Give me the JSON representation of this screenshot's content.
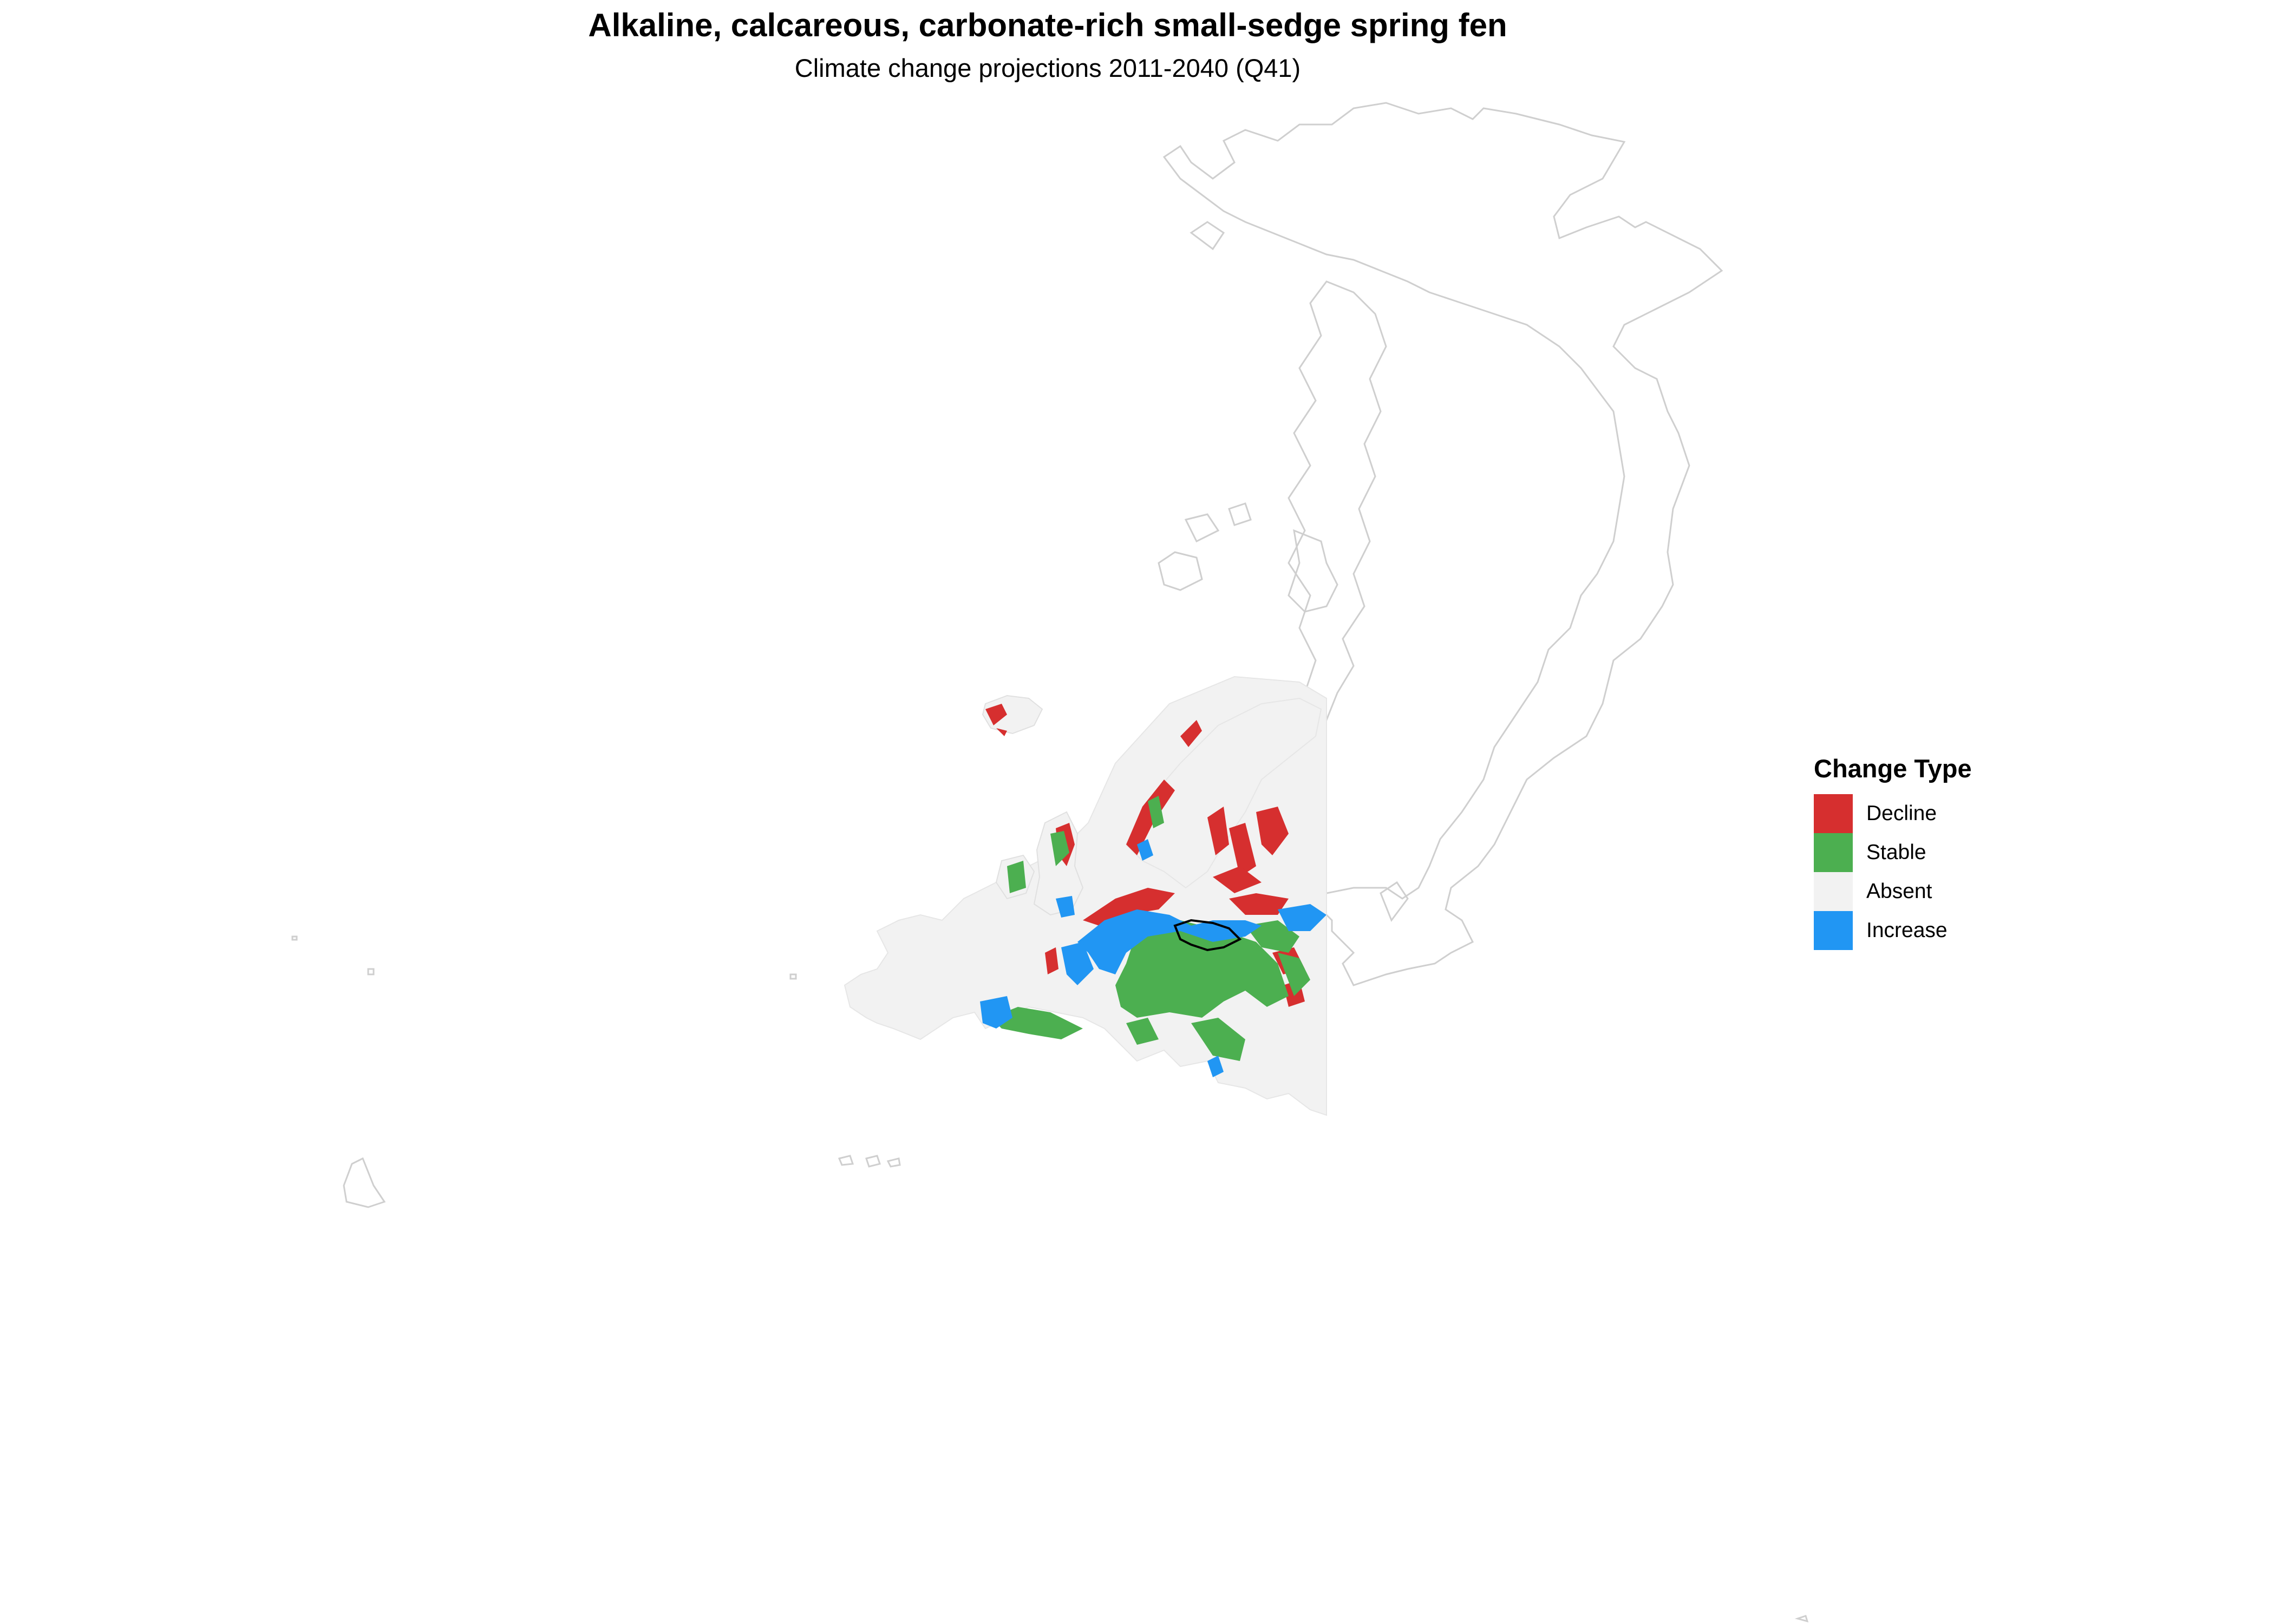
{
  "title": "Alkaline, calcareous, carbonate-rich small-sedge spring fen",
  "subtitle": "Climate change projections 2011-2040 (Q41)",
  "legend": {
    "title": "Change Type",
    "items": [
      {
        "label": "Decline",
        "color": "#d62f2f"
      },
      {
        "label": "Stable",
        "color": "#4caf50"
      },
      {
        "label": "Absent",
        "color": "#f2f2f2"
      },
      {
        "label": "Increase",
        "color": "#2196f3"
      }
    ]
  },
  "colors": {
    "coastline": "#cfcfcf",
    "land": "#f2f2f2",
    "highlight_border": "#000000"
  }
}
